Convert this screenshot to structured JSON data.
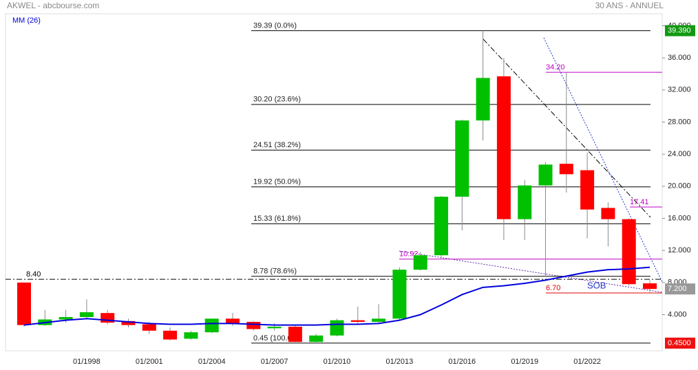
{
  "header": {
    "left": "AKWEL - abcbourse.com",
    "right": "30 ANS - ANNUEL"
  },
  "chart_data": {
    "type": "candlestick",
    "legend": "MM (26)",
    "categories": [
      null,
      null,
      null,
      "01/1998",
      null,
      null,
      "01/2001",
      null,
      null,
      "01/2004",
      null,
      null,
      "01/2007",
      null,
      null,
      "01/2010",
      null,
      null,
      "01/2013",
      null,
      null,
      "01/2016",
      null,
      null,
      "01/2019",
      null,
      null,
      "01/2022",
      null,
      null,
      null
    ],
    "open": [
      8.0,
      2.7,
      3.4,
      3.7,
      4.2,
      3.2,
      2.8,
      2.0,
      1.0,
      1.8,
      3.5,
      3.1,
      2.3,
      2.5,
      0.6,
      1.4,
      3.3,
      3.1,
      3.5,
      9.6,
      11.4,
      18.7,
      28.2,
      33.7,
      15.9,
      20.1,
      22.8,
      22.0,
      17.3,
      15.9,
      7.9
    ],
    "high": [
      8.0,
      4.6,
      4.6,
      5.9,
      4.6,
      3.5,
      3.1,
      2.4,
      2.0,
      3.5,
      4.2,
      3.2,
      2.9,
      2.7,
      1.6,
      3.5,
      5.0,
      5.3,
      9.9,
      11.8,
      18.8,
      28.3,
      39.39,
      36.0,
      20.8,
      23.0,
      34.2,
      24.2,
      18.0,
      16.0,
      8.3
    ],
    "low": [
      2.5,
      2.6,
      3.0,
      3.4,
      2.8,
      2.4,
      1.6,
      0.8,
      0.9,
      1.7,
      2.6,
      2.0,
      2.0,
      0.55,
      0.45,
      1.3,
      2.8,
      2.9,
      3.3,
      9.5,
      10.9,
      14.5,
      25.7,
      13.3,
      13.3,
      8.7,
      19.2,
      13.5,
      12.5,
      7.6,
      6.8
    ],
    "close": [
      2.7,
      3.4,
      3.7,
      4.3,
      3.0,
      2.7,
      2.0,
      0.9,
      1.8,
      3.5,
      2.9,
      2.2,
      2.5,
      0.6,
      1.4,
      3.3,
      3.1,
      3.5,
      9.6,
      11.4,
      18.7,
      28.2,
      33.5,
      15.9,
      20.1,
      22.7,
      21.5,
      17.1,
      15.9,
      7.8,
      7.2
    ],
    "up_color": "#00c000",
    "down_color": "#ff0000",
    "ma": {
      "color": "#0000dd",
      "values": [
        2.7,
        3.0,
        3.3,
        3.5,
        3.3,
        3.1,
        2.9,
        2.8,
        2.8,
        2.9,
        2.9,
        2.8,
        2.7,
        2.7,
        2.7,
        2.8,
        2.8,
        2.9,
        3.3,
        4.0,
        5.2,
        6.5,
        7.4,
        7.6,
        7.9,
        8.3,
        8.8,
        9.3,
        9.6,
        9.7,
        9.9
      ]
    },
    "ylim": [
      -0.5,
      41.5
    ],
    "yticks": [
      {
        "value": 4,
        "label": "4.000"
      },
      {
        "value": 8,
        "label": "8.000"
      },
      {
        "value": 12,
        "label": "12.000"
      },
      {
        "value": 16,
        "label": "16.000"
      },
      {
        "value": 20,
        "label": "20.000"
      },
      {
        "value": 24,
        "label": "24.000"
      },
      {
        "value": 28,
        "label": "28.000"
      },
      {
        "value": 32,
        "label": "32.000"
      },
      {
        "value": 36,
        "label": "36.000"
      },
      {
        "value": 40,
        "label": "40.000"
      }
    ],
    "fibonacci": [
      {
        "value": 39.39,
        "label": "39.39  (0.0%)"
      },
      {
        "value": 30.2,
        "label": "30.20  (23.6%)"
      },
      {
        "value": 24.51,
        "label": "24.51  (38.2%)"
      },
      {
        "value": 19.92,
        "label": "19.92  (50.0%)"
      },
      {
        "value": 15.33,
        "label": "15.33  (61.8%)"
      },
      {
        "value": 8.78,
        "label": "8.78  (78.6%)"
      },
      {
        "value": 0.45,
        "label": "0.45  (100.0%)"
      }
    ],
    "levels": [
      {
        "value": 8.4,
        "label": "8.40",
        "color": "#000000"
      },
      {
        "value": 34.2,
        "label": "34.20",
        "color": "#c000c0"
      },
      {
        "value": 17.41,
        "label": "17.41",
        "color": "#c000c0"
      },
      {
        "value": 10.92,
        "label": "10.92",
        "color": "#c000c0"
      },
      {
        "value": 6.7,
        "label": "6.70",
        "color": "#e00000"
      }
    ],
    "annotation": "SOB",
    "badges": [
      {
        "value": 39.39,
        "label": "39.390",
        "color": "#119911"
      },
      {
        "value": 7.2,
        "label": "7.200",
        "color": "#999999"
      },
      {
        "value": 0.45,
        "label": "0.4500",
        "color": "#ee1111"
      }
    ]
  }
}
